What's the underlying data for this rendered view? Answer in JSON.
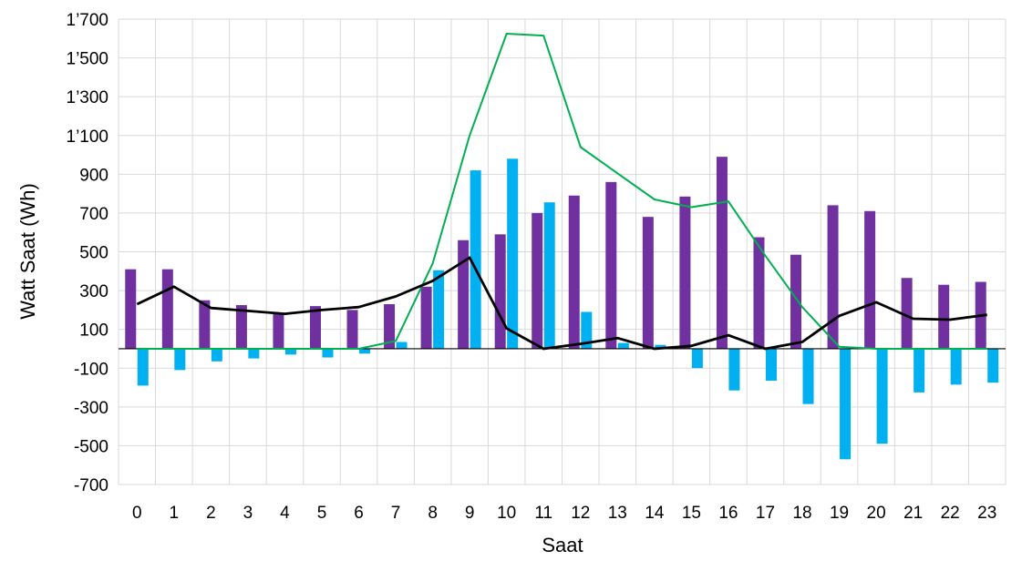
{
  "chart_data": {
    "type": "bar",
    "title": "",
    "xlabel": "Saat",
    "ylabel": "Watt Saat (Wh)",
    "categories": [
      "0",
      "1",
      "2",
      "3",
      "4",
      "5",
      "6",
      "7",
      "8",
      "9",
      "10",
      "11",
      "12",
      "13",
      "14",
      "15",
      "16",
      "17",
      "18",
      "19",
      "20",
      "21",
      "22",
      "23"
    ],
    "ylim": [
      -700,
      1700
    ],
    "yticks": [
      -700,
      -500,
      -300,
      -100,
      100,
      300,
      500,
      700,
      900,
      1100,
      1300,
      1500,
      1700
    ],
    "ytick_labels": [
      "-700",
      "-500",
      "-300",
      "-100",
      "100",
      "300",
      "500",
      "700",
      "900",
      "1’100",
      "1’300",
      "1’500",
      "1’700"
    ],
    "grid": true,
    "legend": "none",
    "series": [
      {
        "type": "bar",
        "color": "#7030A0",
        "values": [
          410,
          410,
          250,
          225,
          185,
          220,
          200,
          230,
          320,
          560,
          590,
          700,
          790,
          860,
          680,
          785,
          990,
          575,
          485,
          740,
          710,
          365,
          330,
          345
        ]
      },
      {
        "type": "bar",
        "color": "#00B0F0",
        "values": [
          -190,
          -110,
          -65,
          -50,
          -30,
          -45,
          -25,
          35,
          405,
          920,
          980,
          755,
          190,
          30,
          20,
          -100,
          -215,
          -165,
          -285,
          -570,
          -490,
          -225,
          -185,
          -175
        ]
      },
      {
        "type": "line",
        "color": "#00B050",
        "values": [
          0,
          0,
          0,
          0,
          0,
          0,
          0,
          40,
          440,
          1100,
          1625,
          1615,
          1040,
          905,
          770,
          730,
          760,
          480,
          215,
          10,
          0,
          0,
          0,
          0
        ]
      },
      {
        "type": "line",
        "color": "#000000",
        "values": [
          230,
          320,
          210,
          195,
          180,
          200,
          215,
          270,
          350,
          470,
          105,
          0,
          25,
          55,
          0,
          15,
          70,
          0,
          35,
          170,
          240,
          155,
          150,
          175
        ]
      }
    ]
  }
}
